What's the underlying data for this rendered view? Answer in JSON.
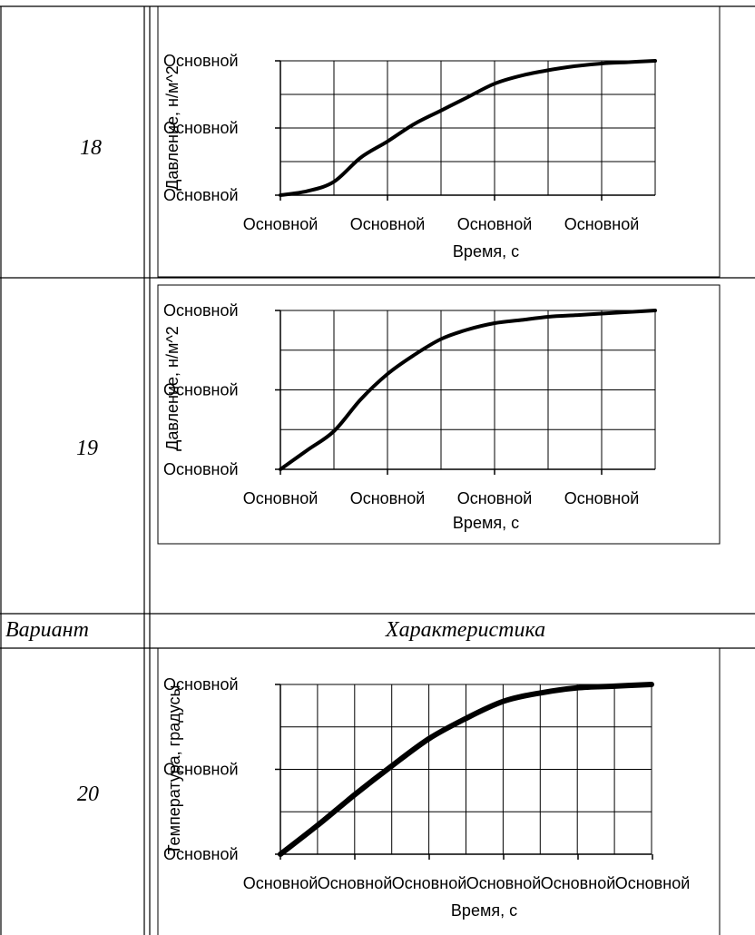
{
  "table": {
    "header": {
      "col1": "Вариант",
      "col2": "Характеристика"
    },
    "rows": [
      {
        "variant": "18"
      },
      {
        "variant": "19"
      },
      {
        "variant": "20"
      }
    ]
  },
  "chart_data": [
    {
      "type": "line",
      "variant": "18",
      "xlabel": "Время, с",
      "ylabel": "Давление, н/м^2",
      "x_tick_labels": [
        "Основной",
        "Основной",
        "Основной",
        "Основной"
      ],
      "y_tick_labels": [
        "Основной",
        "Основной",
        "Основной"
      ],
      "xlim": [
        0,
        7
      ],
      "ylim": [
        0,
        1
      ],
      "grid": true,
      "series": [
        {
          "x": [
            0,
            0.5,
            1,
            1.5,
            2,
            2.5,
            3,
            3.5,
            4,
            4.5,
            5,
            5.5,
            6,
            6.5,
            7
          ],
          "y": [
            0,
            0.03,
            0.1,
            0.28,
            0.4,
            0.53,
            0.63,
            0.73,
            0.83,
            0.89,
            0.93,
            0.96,
            0.98,
            0.99,
            1.0
          ]
        }
      ]
    },
    {
      "type": "line",
      "variant": "19",
      "xlabel": "Время, с",
      "ylabel": "Давление, н/м^2",
      "x_tick_labels": [
        "Основной",
        "Основной",
        "Основной",
        "Основной"
      ],
      "y_tick_labels": [
        "Основной",
        "Основной",
        "Основной"
      ],
      "xlim": [
        0,
        7
      ],
      "ylim": [
        0,
        1
      ],
      "grid": true,
      "series": [
        {
          "x": [
            0,
            0.5,
            1,
            1.5,
            2,
            2.5,
            3,
            3.5,
            4,
            4.5,
            5,
            5.5,
            6,
            6.5,
            7
          ],
          "y": [
            0,
            0.12,
            0.24,
            0.44,
            0.6,
            0.72,
            0.82,
            0.88,
            0.92,
            0.94,
            0.96,
            0.97,
            0.98,
            0.99,
            1.0
          ]
        }
      ]
    },
    {
      "type": "line",
      "variant": "20",
      "xlabel": "Время, с",
      "ylabel": "Температура, градусы",
      "x_tick_labels": [
        "Основной",
        "Основной",
        "Основной",
        "Основной",
        "Основной",
        "Основной"
      ],
      "y_tick_labels": [
        "Основной",
        "Основной",
        "Основной"
      ],
      "xlim": [
        0,
        10
      ],
      "ylim": [
        0,
        1
      ],
      "grid": true,
      "series": [
        {
          "x": [
            0,
            1,
            2,
            3,
            4,
            5,
            6,
            7,
            8,
            9,
            10
          ],
          "y": [
            0,
            0.17,
            0.35,
            0.52,
            0.68,
            0.8,
            0.9,
            0.95,
            0.98,
            0.99,
            1.0
          ]
        }
      ]
    }
  ]
}
